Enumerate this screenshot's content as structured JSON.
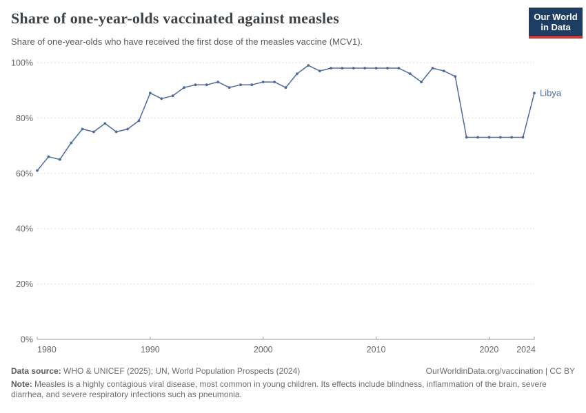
{
  "header": {
    "title": "Share of one-year-olds vaccinated against measles",
    "subtitle": "Share of one-year-olds who have received the first dose of the measles vaccine (MCV1).",
    "logo": {
      "line1": "Our World",
      "line2": "in Data",
      "bg_color": "#1d3d63",
      "bar_color": "#c53a3e"
    }
  },
  "chart_data": {
    "type": "line",
    "title": "Share of one-year-olds vaccinated against measles",
    "entity_label": "Libya",
    "x": [
      1980,
      1981,
      1982,
      1983,
      1984,
      1985,
      1986,
      1987,
      1988,
      1989,
      1990,
      1991,
      1992,
      1993,
      1994,
      1995,
      1996,
      1997,
      1998,
      1999,
      2000,
      2001,
      2002,
      2003,
      2004,
      2005,
      2006,
      2007,
      2008,
      2009,
      2010,
      2011,
      2012,
      2013,
      2014,
      2015,
      2016,
      2017,
      2018,
      2019,
      2020,
      2021,
      2022,
      2023,
      2024
    ],
    "series": [
      {
        "name": "Libya",
        "color": "#4c6a9c",
        "values": [
          61,
          66,
          65,
          71,
          76,
          75,
          78,
          75,
          76,
          79,
          89,
          87,
          88,
          91,
          92,
          92,
          93,
          91,
          92,
          92,
          93,
          93,
          91,
          96,
          99,
          97,
          98,
          98,
          98,
          98,
          98,
          98,
          98,
          96,
          93,
          98,
          97,
          95,
          73,
          73,
          73,
          73,
          73,
          73,
          89
        ]
      }
    ],
    "xlim": [
      1980,
      2024
    ],
    "ylim": [
      0,
      100
    ],
    "xticks": [
      1980,
      1990,
      2000,
      2010,
      2020,
      2024
    ],
    "xtick_labels": [
      "1980",
      "1990",
      "2000",
      "2010",
      "2020",
      "2024"
    ],
    "yticks": [
      0,
      20,
      40,
      60,
      80,
      100
    ],
    "ytick_labels": [
      "0%",
      "20%",
      "40%",
      "60%",
      "80%",
      "100%"
    ],
    "grid": "horizontal-dashed",
    "legend_position": "end-of-line-label",
    "colors": {
      "grid": "#dcdcdc",
      "axis": "#9e9e9e",
      "tick_text": "#666666"
    }
  },
  "footer": {
    "datasource_label": "Data source:",
    "datasource_text": " WHO & UNICEF (2025); UN, World Population Prospects (2024)",
    "attribution": "OurWorldinData.org/vaccination | CC BY",
    "note_label": "Note:",
    "note_text": " Measles is a highly contagious viral disease, most common in young children. Its effects include blindness, inflammation of the brain, severe diarrhea, and severe respiratory infections such as pneumonia."
  }
}
